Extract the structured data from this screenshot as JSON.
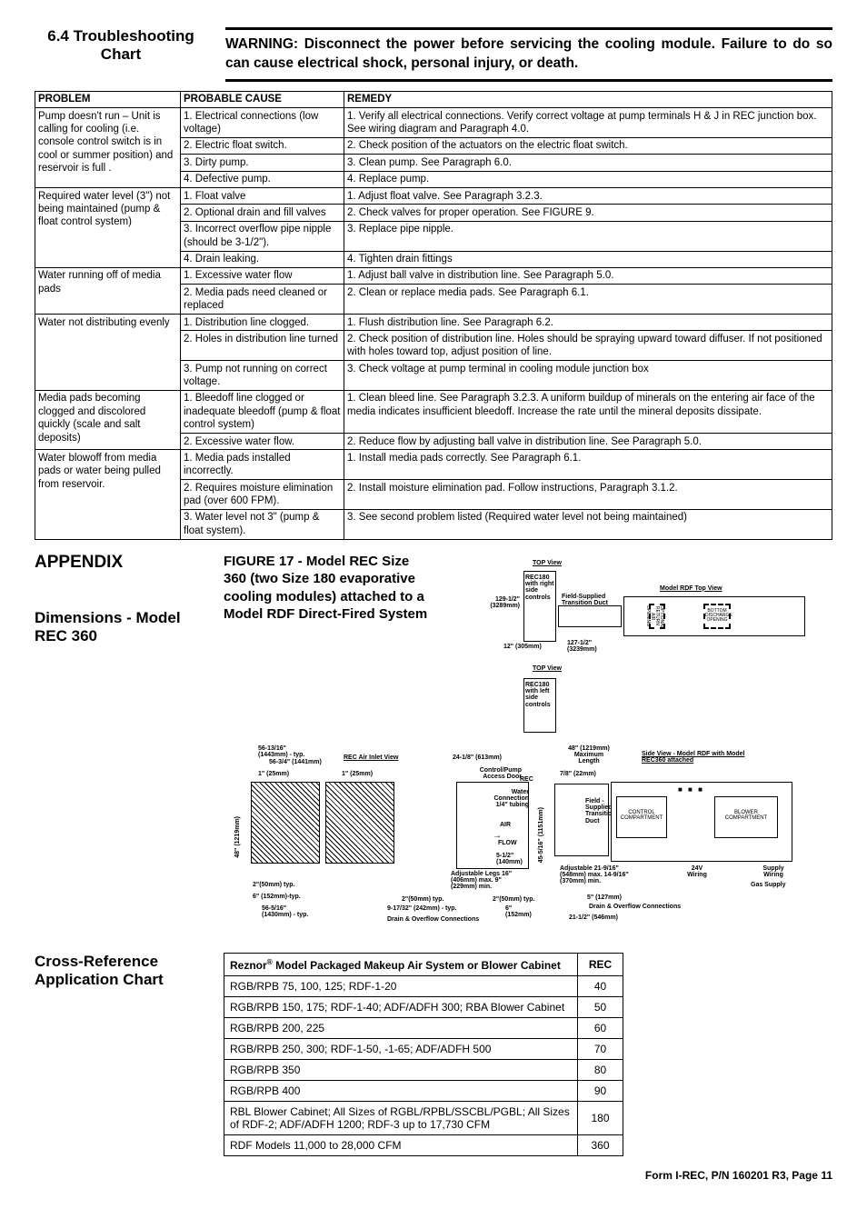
{
  "header": {
    "section_title": "6.4 Troubleshooting Chart",
    "warning": "WARNING: Disconnect the power before servicing the cooling module. Failure to do so can cause electrical shock, personal injury, or death."
  },
  "trouble_table": {
    "columns": [
      "PROBLEM",
      "PROBABLE CAUSE",
      "REMEDY"
    ],
    "groups": [
      {
        "problem": "Pump doesn't run – Unit is calling for cooling (i.e. console control switch is in cool or summer position) and reservoir is full .",
        "rows": [
          {
            "cause": "1. Electrical connections (low voltage)",
            "remedy": "1. Verify all electrical connections. Verify correct voltage at pump terminals H & J in REC junction box. See wiring diagram and Paragraph 4.0."
          },
          {
            "cause": "2. Electric float switch.",
            "remedy": "2. Check position of the actuators on the electric float switch."
          },
          {
            "cause": "3. Dirty pump.",
            "remedy": "3. Clean pump. See Paragraph 6.0."
          },
          {
            "cause": "4. Defective pump.",
            "remedy": "4. Replace pump."
          }
        ]
      },
      {
        "problem": "Required water level (3\") not being maintained (pump & float control system)",
        "rows": [
          {
            "cause": "1. Float valve",
            "remedy": "1. Adjust float valve. See Paragraph 3.2.3."
          },
          {
            "cause": "2. Optional drain and fill valves",
            "remedy": "2. Check valves for proper operation. See FIGURE 9."
          },
          {
            "cause": "3. Incorrect overflow pipe nipple (should be 3-1/2\").",
            "remedy": "3. Replace pipe nipple."
          },
          {
            "cause": "4. Drain leaking.",
            "remedy": "4. Tighten drain fittings"
          }
        ]
      },
      {
        "problem": "Water running off of media pads",
        "rows": [
          {
            "cause": "1. Excessive water flow",
            "remedy": "1. Adjust ball valve in distribution line. See Paragraph 5.0."
          },
          {
            "cause": "2. Media pads need cleaned or replaced",
            "remedy": "2. Clean or replace media pads. See Paragraph 6.1."
          }
        ]
      },
      {
        "problem": "Water not distributing evenly",
        "rows": [
          {
            "cause": "1. Distribution line clogged.",
            "remedy": "1. Flush distribution line. See Paragraph 6.2."
          },
          {
            "cause": "2. Holes in distribution line turned",
            "remedy": "2. Check position of distribution line. Holes should be spraying upward toward diffuser. If not positioned with holes toward top, adjust position of line."
          },
          {
            "cause": "3. Pump not running on correct voltage.",
            "remedy": "3. Check voltage at pump terminal in cooling module junction box"
          }
        ]
      },
      {
        "problem": "Media pads becoming clogged and discolored quickly (scale and salt deposits)",
        "rows": [
          {
            "cause": "1. Bleedoff line clogged or inadequate bleedoff (pump & float control system)",
            "remedy": "1. Clean bleed line. See Paragraph 3.2.3. A uniform buildup of minerals on the entering air face of the media indicates insufficient bleedoff. Increase the rate until the mineral deposits dissipate."
          },
          {
            "cause": "2. Excessive water flow.",
            "remedy": "2. Reduce flow by adjusting ball valve in distribution line. See Paragraph 5.0."
          }
        ]
      },
      {
        "problem": "Water blowoff from media pads or water being pulled from reservoir.",
        "rows": [
          {
            "cause": "1. Media pads installed incorrectly.",
            "remedy": "1. Install media pads correctly. See Paragraph 6.1."
          },
          {
            "cause": "2. Requires moisture elimination pad (over 600 FPM).",
            "remedy": "2. Install moisture elimination pad. Follow instructions, Paragraph 3.1.2."
          },
          {
            "cause": "3. Water level not 3\" (pump & float system).",
            "remedy": "3. See second problem listed (Required water level not being maintained)"
          }
        ]
      }
    ]
  },
  "appendix": {
    "title": "APPENDIX",
    "subtitle": "Dimensions - Model REC 360",
    "figure_caption": "FIGURE 17 - Model REC Size 360 (two Size 180 evaporative cooling modules) attached to a Model RDF Direct-Fired System",
    "labels": {
      "top_view": "TOP View",
      "rec180_right": "REC180 with right side controls",
      "rdf_top": "Model RDF Top View",
      "dim_129": "129-1/2\" (3289mm)",
      "field_trans": "Field-Supplied Transition Duct",
      "dim_12": "12\" (305mm)",
      "dim_127": "127-1/2\" (3239mm)",
      "bottom_disch": "BOTTOM DISCHARGE OPENING",
      "opt_return": "OPTIONAL RETURN AIR OPENING",
      "rec180_left": "REC180 with left side controls",
      "dim_5613": "56-13/16\" (1443mm) - typ.",
      "dim_5634": "56-3/4\" (1441mm)",
      "dim_1": "1\" (25mm)",
      "rec_inlet": "REC Air Inlet View",
      "dim_48v": "48\" (1219mm)",
      "dim_2": "2\"(50mm) typ.",
      "dim_6": "6\" (152mm)-typ.",
      "dim_5616": "56-5/16\" (1430mm) - typ.",
      "dim_241": "24-1/8\" (613mm)",
      "cp_door": "Control/Pump Access Door",
      "rec": "REC",
      "water_conn": "Water Connection 1/4\" tubing",
      "air": "AIR",
      "flow": "FLOW",
      "dim_51": "5-1/2\" (140mm)",
      "adj_legs": "Adjustable Legs 16\" (406mm) max. 9\" (229mm) min.",
      "dim_917": "9-17/32\" (242mm) - typ.",
      "drain_over": "Drain & Overflow Connections",
      "dim_6b": "6\" (152mm)",
      "dim_48max": "48\" (1219mm) Maximum Length",
      "dim_78": "7/8\" (22mm)",
      "dim_4551": "45-5/16\" (1151mm)",
      "field_sup": "Field - Supplied Transition Duct",
      "control_comp": "CONTROL COMPARTMENT",
      "blower_comp": "BLOWER COMPARTMENT",
      "adj_219": "Adjustable 21-9/16\" (548mm) max. 14-9/16\" (370mm) min.",
      "dim_5c": "5\" (127mm)",
      "drain_over2": "Drain & Overflow Connections",
      "dim_2112": "21-1/2\" (546mm)",
      "side_view": "Side View - Model RDF with Model REC360 attached",
      "v24": "24V Wiring",
      "supply_w": "Supply Wiring",
      "gas": "Gas Supply"
    }
  },
  "cross_ref": {
    "title": "Cross-Reference Application Chart",
    "col1": "Reznor® Model Packaged Makeup Air System or Blower Cabinet",
    "col2": "REC",
    "rows": [
      {
        "m": "RGB/RPB 75, 100, 125; RDF-1-20",
        "r": "40"
      },
      {
        "m": "RGB/RPB 150, 175; RDF-1-40; ADF/ADFH 300; RBA Blower Cabinet",
        "r": "50"
      },
      {
        "m": "RGB/RPB 200, 225",
        "r": "60"
      },
      {
        "m": "RGB/RPB 250, 300; RDF-1-50, -1-65; ADF/ADFH 500",
        "r": "70"
      },
      {
        "m": "RGB/RPB 350",
        "r": "80"
      },
      {
        "m": "RGB/RPB 400",
        "r": "90"
      },
      {
        "m": "RBL Blower Cabinet; All Sizes of RGBL/RPBL/SSCBL/PGBL; All Sizes of RDF-2; ADF/ADFH 1200; RDF-3 up to 17,730 CFM",
        "r": "180"
      },
      {
        "m": "RDF Models 11,000 to 28,000 CFM",
        "r": "360"
      }
    ]
  },
  "footer": "Form I-REC, P/N 160201 R3, Page 11"
}
